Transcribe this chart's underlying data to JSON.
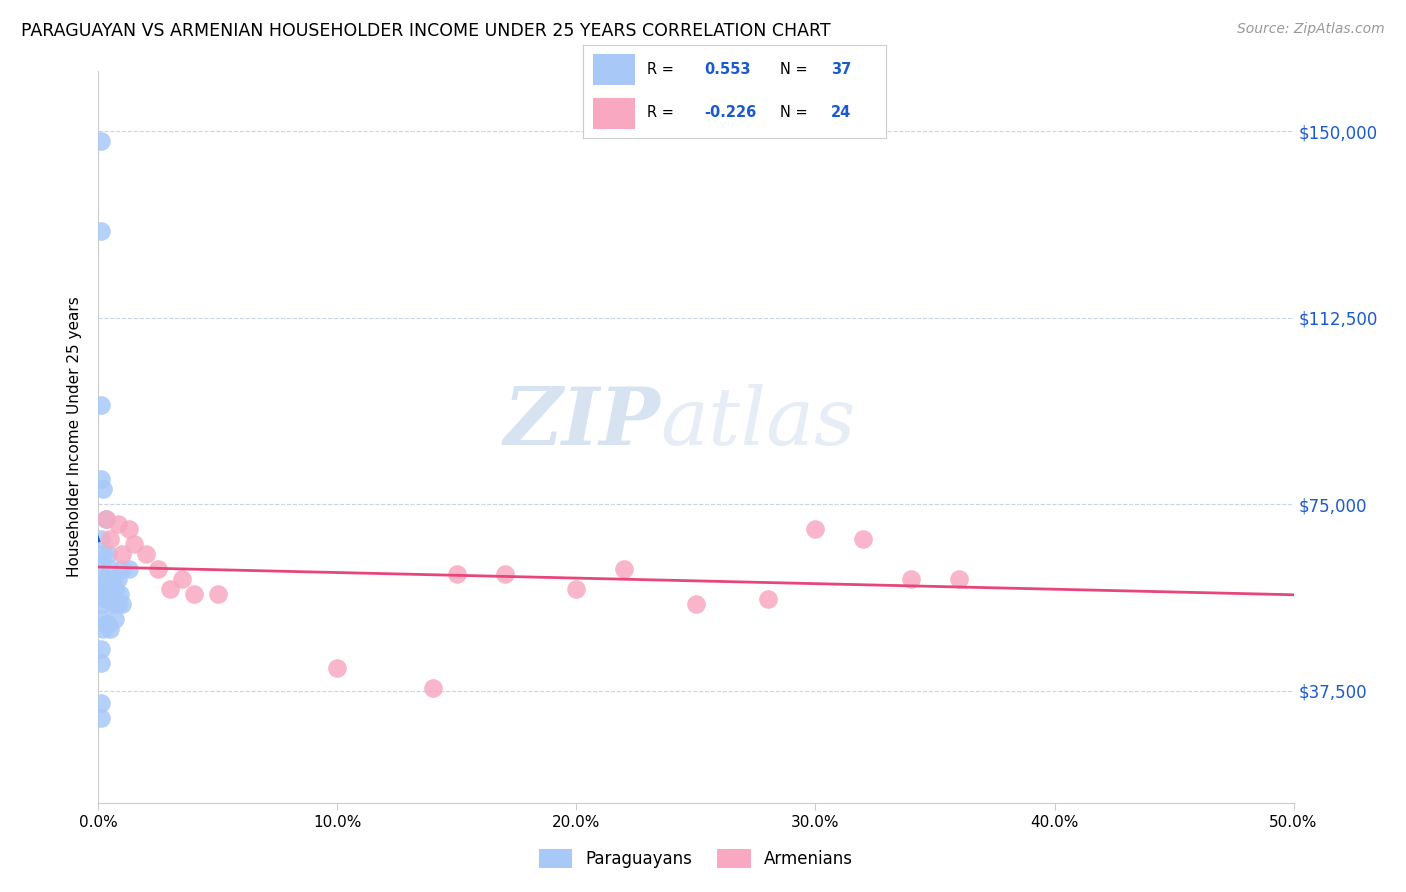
{
  "title": "PARAGUAYAN VS ARMENIAN HOUSEHOLDER INCOME UNDER 25 YEARS CORRELATION CHART",
  "source": "Source: ZipAtlas.com",
  "ylabel": "Householder Income Under 25 years",
  "legend_paraguayans": "Paraguayans",
  "legend_armenians": "Armenians",
  "r_paraguayan": "0.553",
  "n_paraguayan": "37",
  "r_armenian": "-0.226",
  "n_armenian": "24",
  "paraguayan_color": "#a8c8f8",
  "armenian_color": "#f8a8c0",
  "trendline_paraguayan_color": "#1a5acd",
  "trendline_armenian_color": "#e8457a",
  "background_color": "#ffffff",
  "watermark_zip": "ZIP",
  "watermark_atlas": "atlas",
  "xlim": [
    0.0,
    0.5
  ],
  "ylim": [
    15000,
    162000
  ],
  "yticks": [
    37500,
    75000,
    112500,
    150000
  ],
  "ytick_labels": [
    "$37,500",
    "$75,000",
    "$112,500",
    "$150,000"
  ],
  "xticks": [
    0.0,
    0.1,
    0.2,
    0.3,
    0.4,
    0.5
  ],
  "xtick_labels": [
    "0.0%",
    "10.0%",
    "20.0%",
    "30.0%",
    "40.0%",
    "50.0%"
  ],
  "paraguayan_x": [
    0.001,
    0.001,
    0.001,
    0.001,
    0.001,
    0.001,
    0.001,
    0.001,
    0.002,
    0.002,
    0.002,
    0.002,
    0.002,
    0.003,
    0.003,
    0.003,
    0.003,
    0.004,
    0.004,
    0.004,
    0.005,
    0.005,
    0.005,
    0.006,
    0.006,
    0.007,
    0.007,
    0.008,
    0.008,
    0.009,
    0.01,
    0.01,
    0.013,
    0.001,
    0.001,
    0.001,
    0.001
  ],
  "paraguayan_y": [
    148000,
    130000,
    95000,
    80000,
    68000,
    63000,
    58000,
    52000,
    78000,
    65000,
    60000,
    55000,
    50000,
    72000,
    60000,
    56000,
    51000,
    65000,
    58000,
    51000,
    62000,
    57000,
    50000,
    60000,
    55000,
    58000,
    52000,
    60000,
    55000,
    57000,
    62000,
    55000,
    62000,
    46000,
    43000,
    35000,
    32000
  ],
  "armenian_x": [
    0.003,
    0.005,
    0.008,
    0.01,
    0.013,
    0.015,
    0.02,
    0.025,
    0.03,
    0.035,
    0.04,
    0.05,
    0.1,
    0.14,
    0.15,
    0.17,
    0.2,
    0.22,
    0.25,
    0.28,
    0.3,
    0.32,
    0.34,
    0.36
  ],
  "armenian_y": [
    72000,
    68000,
    71000,
    65000,
    70000,
    67000,
    65000,
    62000,
    58000,
    60000,
    57000,
    57000,
    42000,
    38000,
    61000,
    61000,
    58000,
    62000,
    55000,
    56000,
    70000,
    68000,
    60000,
    60000
  ]
}
